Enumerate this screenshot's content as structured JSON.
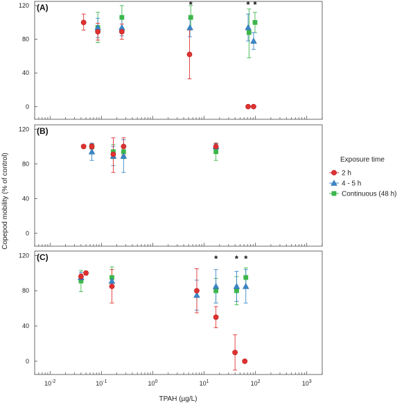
{
  "chart_data": {
    "type": "scatter",
    "xscale": "log",
    "xlim": [
      0.005,
      2000
    ],
    "ylim": [
      -15,
      125
    ],
    "xlabel": "TPAH (µg/L)",
    "ylabel": "Copepod mobility (% of control)",
    "x_ticks": [
      {
        "base": "10",
        "exp": "-2"
      },
      {
        "base": "10",
        "exp": "-1"
      },
      {
        "base": "10",
        "exp": "0"
      },
      {
        "base": "10",
        "exp": "1"
      },
      {
        "base": "10",
        "exp": "2"
      },
      {
        "base": "10",
        "exp": "3"
      }
    ],
    "y_ticks": [
      "0",
      "40",
      "80",
      "120"
    ],
    "legend": {
      "title": "Exposure time",
      "placement": "right",
      "entries": [
        {
          "label": "2 h",
          "color": "#e03131",
          "marker": "circle"
        },
        {
          "label": "4 - 5 h",
          "color": "#3a86c8",
          "marker": "triangle"
        },
        {
          "label": "Continuous (48 h)",
          "color": "#3cb64a",
          "marker": "square"
        }
      ]
    },
    "panels": [
      {
        "label": "A",
        "points": [
          {
            "s": 2,
            "x": 0.085,
            "y": 94,
            "lo": 76,
            "hi": 112
          },
          {
            "s": 2,
            "x": 0.25,
            "y": 106,
            "lo": 92,
            "hi": 120
          },
          {
            "s": 2,
            "x": 5.5,
            "y": 106,
            "lo": 92,
            "hi": 120
          },
          {
            "s": 2,
            "x": 75,
            "y": 88,
            "lo": 58,
            "hi": 116
          },
          {
            "s": 2,
            "x": 98,
            "y": 100,
            "lo": 88,
            "hi": 112
          },
          {
            "s": 1,
            "x": 0.085,
            "y": 94,
            "lo": 82,
            "hi": 105
          },
          {
            "s": 1,
            "x": 0.25,
            "y": 94,
            "lo": 84,
            "hi": 104
          },
          {
            "s": 1,
            "x": 5.3,
            "y": 94,
            "lo": 83,
            "hi": 105
          },
          {
            "s": 1,
            "x": 72,
            "y": 94,
            "lo": 78,
            "hi": 110
          },
          {
            "s": 1,
            "x": 92,
            "y": 78,
            "lo": 68,
            "hi": 88
          },
          {
            "s": 0,
            "x": 0.045,
            "y": 100,
            "lo": 91,
            "hi": 110
          },
          {
            "s": 0,
            "x": 0.085,
            "y": 89,
            "lo": 79,
            "hi": 99
          },
          {
            "s": 0,
            "x": 0.25,
            "y": 89,
            "lo": 80,
            "hi": 98
          },
          {
            "s": 0,
            "x": 5.2,
            "y": 62,
            "lo": 33,
            "hi": 91
          },
          {
            "s": 0,
            "x": 72,
            "y": 0
          },
          {
            "s": 0,
            "x": 92,
            "y": 0
          }
        ],
        "stars": [
          {
            "x": 5.5,
            "y": 121,
            "label": "*"
          },
          {
            "x": 72,
            "y": 121,
            "label": "*"
          },
          {
            "x": 98,
            "y": 121,
            "label": "*"
          }
        ]
      },
      {
        "label": "B",
        "points": [
          {
            "s": 2,
            "x": 0.065,
            "y": 100,
            "lo": 97,
            "hi": 103
          },
          {
            "s": 2,
            "x": 0.17,
            "y": 94,
            "lo": 86,
            "hi": 102
          },
          {
            "s": 2,
            "x": 0.27,
            "y": 94,
            "lo": 86,
            "hi": 102
          },
          {
            "s": 2,
            "x": 17,
            "y": 94,
            "lo": 84,
            "hi": 104
          },
          {
            "s": 1,
            "x": 0.065,
            "y": 94,
            "lo": 84,
            "hi": 104
          },
          {
            "s": 1,
            "x": 0.17,
            "y": 89,
            "lo": 78,
            "hi": 100
          },
          {
            "s": 1,
            "x": 0.27,
            "y": 89,
            "lo": 70,
            "hi": 108
          },
          {
            "s": 1,
            "x": 17,
            "y": 100,
            "lo": 97,
            "hi": 103
          },
          {
            "s": 0,
            "x": 0.045,
            "y": 100,
            "lo": 98,
            "hi": 102
          },
          {
            "s": 0,
            "x": 0.065,
            "y": 100,
            "lo": 97,
            "hi": 103
          },
          {
            "s": 0,
            "x": 0.17,
            "y": 91,
            "lo": 70,
            "hi": 110
          },
          {
            "s": 0,
            "x": 0.27,
            "y": 100,
            "lo": 90,
            "hi": 110
          },
          {
            "s": 0,
            "x": 17,
            "y": 100,
            "lo": 96,
            "hi": 104
          }
        ],
        "stars": []
      },
      {
        "label": "C",
        "points": [
          {
            "s": 2,
            "x": 0.04,
            "y": 91,
            "lo": 79,
            "hi": 103
          },
          {
            "s": 2,
            "x": 0.16,
            "y": 95,
            "lo": 83,
            "hi": 107
          },
          {
            "s": 2,
            "x": 17,
            "y": 80,
            "lo": 66,
            "hi": 94
          },
          {
            "s": 2,
            "x": 43,
            "y": 80,
            "lo": 64,
            "hi": 96
          },
          {
            "s": 2,
            "x": 65,
            "y": 95,
            "lo": 84,
            "hi": 106
          },
          {
            "s": 1,
            "x": 0.04,
            "y": 95,
            "lo": 89,
            "hi": 101
          },
          {
            "s": 1,
            "x": 0.16,
            "y": 91,
            "lo": 85,
            "hi": 97
          },
          {
            "s": 1,
            "x": 7.2,
            "y": 75,
            "lo": 58,
            "hi": 92
          },
          {
            "s": 1,
            "x": 17,
            "y": 85,
            "lo": 66,
            "hi": 104
          },
          {
            "s": 1,
            "x": 43,
            "y": 85,
            "lo": 68,
            "hi": 102
          },
          {
            "s": 1,
            "x": 65,
            "y": 85,
            "lo": 66,
            "hi": 104
          },
          {
            "s": 0,
            "x": 0.04,
            "y": 96,
            "lo": 93,
            "hi": 99
          },
          {
            "s": 0,
            "x": 0.05,
            "y": 100,
            "lo": 98,
            "hi": 102
          },
          {
            "s": 0,
            "x": 0.16,
            "y": 85,
            "lo": 66,
            "hi": 104
          },
          {
            "s": 0,
            "x": 7.2,
            "y": 80,
            "lo": 55,
            "hi": 105
          },
          {
            "s": 0,
            "x": 17,
            "y": 50,
            "lo": 38,
            "hi": 62
          },
          {
            "s": 0,
            "x": 40,
            "y": 10,
            "lo": -10,
            "hi": 30
          },
          {
            "s": 0,
            "x": 62,
            "y": 0
          }
        ],
        "stars": [
          {
            "x": 17,
            "y": 116,
            "label": "*"
          },
          {
            "x": 43,
            "y": 116,
            "label": "*"
          },
          {
            "x": 65,
            "y": 116,
            "label": "*"
          }
        ]
      }
    ]
  }
}
